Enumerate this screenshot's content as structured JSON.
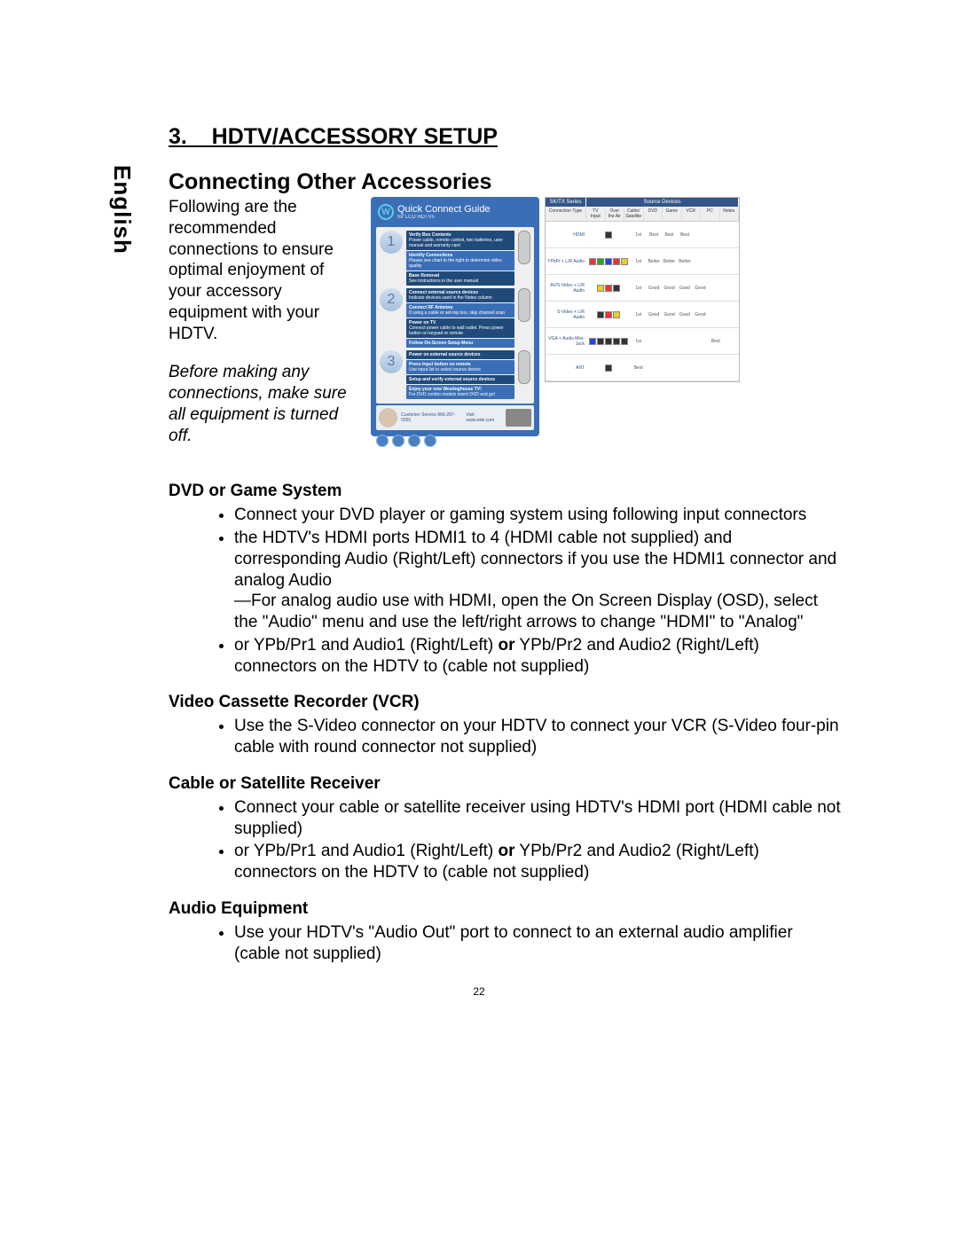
{
  "language_tab": "English",
  "section_number": "3.",
  "section_title_main": "HDTV/ACCESSORY SETUP",
  "section_subtitle": "Connecting Other Accessories",
  "intro_text": "Following are the recommended connections to ensure optimal enjoyment of your accessory equipment with your HDTV.",
  "intro_note": "Before making any connections, make sure all equipment is turned off.",
  "page_number": "22",
  "quick_connect": {
    "title": "Quick Connect Guide",
    "subtitle": "for LCD HDTVs",
    "logo_letter": "W",
    "steps": [
      {
        "num": "1",
        "lines": [
          {
            "t": "Verify Box Contents",
            "d": "Power cable, remote control, two batteries, user manual and warranty card"
          },
          {
            "t": "Identify Connections",
            "d": "Please see chart to the right to determine video quality"
          },
          {
            "t": "Base Removal",
            "d": "See instructions in the user manual"
          }
        ]
      },
      {
        "num": "2",
        "lines": [
          {
            "t": "Connect external source devices",
            "d": "Indicate devices used in the Notes column"
          },
          {
            "t": "Connect RF Antenna",
            "d": "If using a cable or set-top box, skip channel scan"
          },
          {
            "t": "Power on TV",
            "d": "Connect power cable to wall outlet. Press power button on keypad or remote"
          },
          {
            "t": "Follow On-Screen Setup Menu",
            "d": ""
          }
        ]
      },
      {
        "num": "3",
        "lines": [
          {
            "t": "Power on external source devices",
            "d": ""
          },
          {
            "t": "Press Input button on remote",
            "d": "Use input list to select source device"
          },
          {
            "t": "Setup and verify external source devices",
            "d": ""
          },
          {
            "t": "Enjoy your new Westinghouse TV!",
            "d": "For DVD combo models insert DVD and go!"
          }
        ]
      }
    ],
    "footer_left": "Customer Service 866-287-5555",
    "footer_right": "Visit www.wde.com"
  },
  "compat_table": {
    "series_label": "SK/TX Series",
    "source_label": "Source Devices",
    "cols": [
      "Connection Type",
      "TV Input",
      "Over the Air",
      "Cable/ Satellite",
      "DVD",
      "Game",
      "VCR",
      "PC",
      "Notes"
    ],
    "rows": [
      {
        "name": "HDMI",
        "conn": [
          "k"
        ],
        "order": "1st",
        "cells": [
          "Best",
          "Best",
          "Best",
          "",
          "",
          ""
        ]
      },
      {
        "name": "YPbPr + L/R Audio",
        "conn": [
          "r",
          "g",
          "b",
          "r",
          "y"
        ],
        "order": "1st",
        "cells": [
          "Better",
          "Better",
          "Better",
          "",
          "",
          ""
        ]
      },
      {
        "name": "AV/S-Video + L/R Audio",
        "conn": [
          "y",
          "r",
          "k"
        ],
        "order": "1st",
        "cells": [
          "Good",
          "Good",
          "Good",
          "Good",
          "",
          ""
        ]
      },
      {
        "name": "S-Video + L/R Audio",
        "conn": [
          "k",
          "r",
          "y"
        ],
        "order": "1st",
        "cells": [
          "Good",
          "Good",
          "Good",
          "Good",
          "",
          ""
        ]
      },
      {
        "name": "VGA + Audio Mini-Jack",
        "conn": [
          "b",
          "k",
          "k",
          "k",
          "k"
        ],
        "order": "1st",
        "cells": [
          "",
          "",
          "",
          "",
          "Best",
          ""
        ]
      },
      {
        "name": "ANT",
        "conn": [
          "k"
        ],
        "order": "Best",
        "cells": [
          "",
          "",
          "",
          "",
          "",
          ""
        ]
      }
    ]
  },
  "sections": [
    {
      "title": "DVD or Game System",
      "items": [
        {
          "text": "Connect your DVD player or gaming system using following input connectors"
        },
        {
          "text": "the HDTV's HDMI ports HDMI1 to 4 (HDMI cable not supplied) and corresponding Audio (Right/Left) connectors if you use the HDMI1 connector and analog Audio",
          "cont": "—For analog audio use with HDMI, open the On Screen Display (OSD), select the \"Audio\" menu and use the left/right arrows to change \"HDMI\" to \"Analog\""
        },
        {
          "text_parts": [
            "or YPb/Pr1 and Audio1 (Right/Left) ",
            " YPb/Pr2 and Audio2 (Right/Left) connectors on the HDTV to (cable not supplied)"
          ],
          "or": "or"
        }
      ]
    },
    {
      "title": "Video Cassette Recorder (VCR)",
      "items": [
        {
          "text": "Use the S-Video connector on your HDTV to connect your VCR (S-Video four-pin cable with round connector not supplied)"
        }
      ]
    },
    {
      "title": "Cable or Satellite Receiver",
      "items": [
        {
          "text": "Connect your cable or satellite receiver using HDTV's HDMI port (HDMI cable not supplied)"
        },
        {
          "text_parts": [
            "or YPb/Pr1 and Audio1 (Right/Left) ",
            " YPb/Pr2 and Audio2 (Right/Left) connectors on the HDTV to (cable not supplied)"
          ],
          "or": "or"
        }
      ]
    },
    {
      "title": "Audio Equipment",
      "items": [
        {
          "text": "Use your HDTV's \"Audio Out\" port to connect to an external audio amplifier (cable not supplied)"
        }
      ]
    }
  ]
}
